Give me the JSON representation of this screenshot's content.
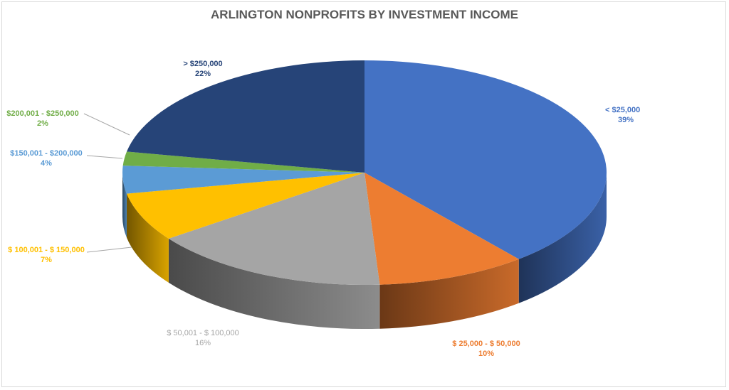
{
  "chart_data": {
    "type": "pie",
    "style": "3d",
    "title": "ARLINGTON NONPROFITS BY INVESTMENT INCOME",
    "slices": [
      {
        "label": "< $25,000",
        "percent_label": "39%",
        "value": 39,
        "color": "#4472C4"
      },
      {
        "label": "$ 25,000 - $ 50,000",
        "percent_label": "10%",
        "value": 10,
        "color": "#ED7D31"
      },
      {
        "label": "$ 50,001 - $ 100,000",
        "percent_label": "16%",
        "value": 16,
        "color": "#A5A5A5"
      },
      {
        "label": "$ 100,001 - $ 150,000",
        "percent_label": "7%",
        "value": 7,
        "color": "#FFC000"
      },
      {
        "label": "$150,001 - $200,000",
        "percent_label": "4%",
        "value": 4,
        "color": "#5B9BD5"
      },
      {
        "label": "$200,001 - $250,000",
        "percent_label": "2%",
        "value": 2,
        "color": "#70AD47"
      },
      {
        "label": "> $250,000",
        "percent_label": "22%",
        "value": 22,
        "color": "#264478"
      }
    ],
    "legend": "none"
  }
}
